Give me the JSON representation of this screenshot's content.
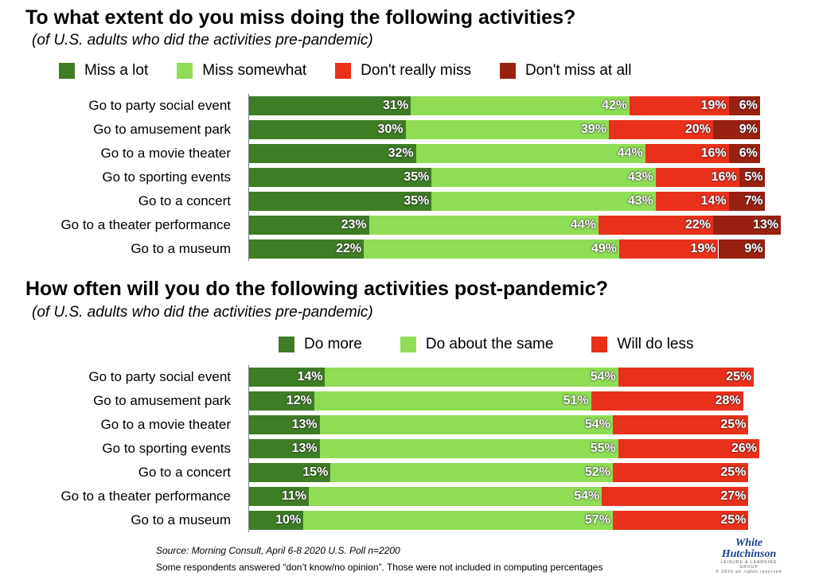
{
  "chart_data": [
    {
      "type": "bar",
      "orientation": "horizontal",
      "stacked": true,
      "title": "To what extent do you miss doing the following activities?",
      "subtitle": "(of U.S. adults who did the activities pre-pandemic)",
      "legend_position": "top",
      "categories": [
        "Go to party social event",
        "Go to amusement park",
        "Go to a movie theater",
        "Go to sporting events",
        "Go to a concert",
        "Go to a theater performance",
        "Go to a museum"
      ],
      "series": [
        {
          "name": "Miss a lot",
          "color": "#3f7c26",
          "values": [
            31,
            30,
            32,
            35,
            35,
            23,
            22
          ],
          "labels": [
            "31%",
            "30%",
            "32%",
            "35%",
            "35%",
            "23%",
            "22%"
          ]
        },
        {
          "name": "Miss somewhat",
          "color": "#8fdc55",
          "values": [
            42,
            39,
            44,
            43,
            43,
            44,
            49
          ],
          "labels": [
            "42%",
            "39%",
            "44%",
            "43%",
            "43%",
            "44%",
            "49%"
          ]
        },
        {
          "name": "Don't really miss",
          "color": "#e8301b",
          "values": [
            19,
            20,
            16,
            16,
            14,
            22,
            19
          ],
          "labels": [
            "19%",
            "20%",
            "16%",
            "16%",
            "14%",
            "22%",
            "19%"
          ]
        },
        {
          "name": "Don't miss at all",
          "color": "#98210f",
          "values": [
            6,
            9,
            6,
            5,
            7,
            13,
            9
          ],
          "labels": [
            "6%",
            "9%",
            "6%",
            "5%",
            "7%",
            "13%",
            "9%"
          ]
        }
      ]
    },
    {
      "type": "bar",
      "orientation": "horizontal",
      "stacked": true,
      "title": "How often will you do the following activities post-pandemic?",
      "subtitle": "(of U.S. adults who did the activities pre-pandemic)",
      "legend_position": "top",
      "categories": [
        "Go to party social event",
        "Go to amusement park",
        "Go to a movie theater",
        "Go to sporting events",
        "Go to a concert",
        "Go to a theater performance",
        "Go to a museum"
      ],
      "series": [
        {
          "name": "Do more",
          "color": "#3f7c26",
          "values": [
            14,
            12,
            13,
            13,
            15,
            11,
            10
          ],
          "labels": [
            "14%",
            "12%",
            "13%",
            "13%",
            "15%",
            "11%",
            "10%"
          ]
        },
        {
          "name": "Do about the same",
          "color": "#8fdc55",
          "values": [
            54,
            51,
            54,
            55,
            52,
            54,
            57
          ],
          "labels": [
            "54%",
            "51%",
            "54%",
            "55%",
            "52%",
            "54%",
            "57%"
          ]
        },
        {
          "name": "Will do less",
          "color": "#e8301b",
          "values": [
            25,
            28,
            25,
            26,
            25,
            27,
            25
          ],
          "labels": [
            "25%",
            "28%",
            "25%",
            "26%",
            "25%",
            "27%",
            "25%"
          ]
        }
      ]
    }
  ],
  "footer": {
    "source": "Source: Morning Consult, April 6-8 2020 U.S. Poll n=2200",
    "note": "Some respondents answered “don’t know/no opinion”. Those were not included in computing percentages"
  },
  "logo": {
    "line1": "White",
    "line2": "Hutchinson",
    "tagline": "LEISURE & LEARNING GROUP",
    "copyright": "© 2020 all rights reserved"
  }
}
